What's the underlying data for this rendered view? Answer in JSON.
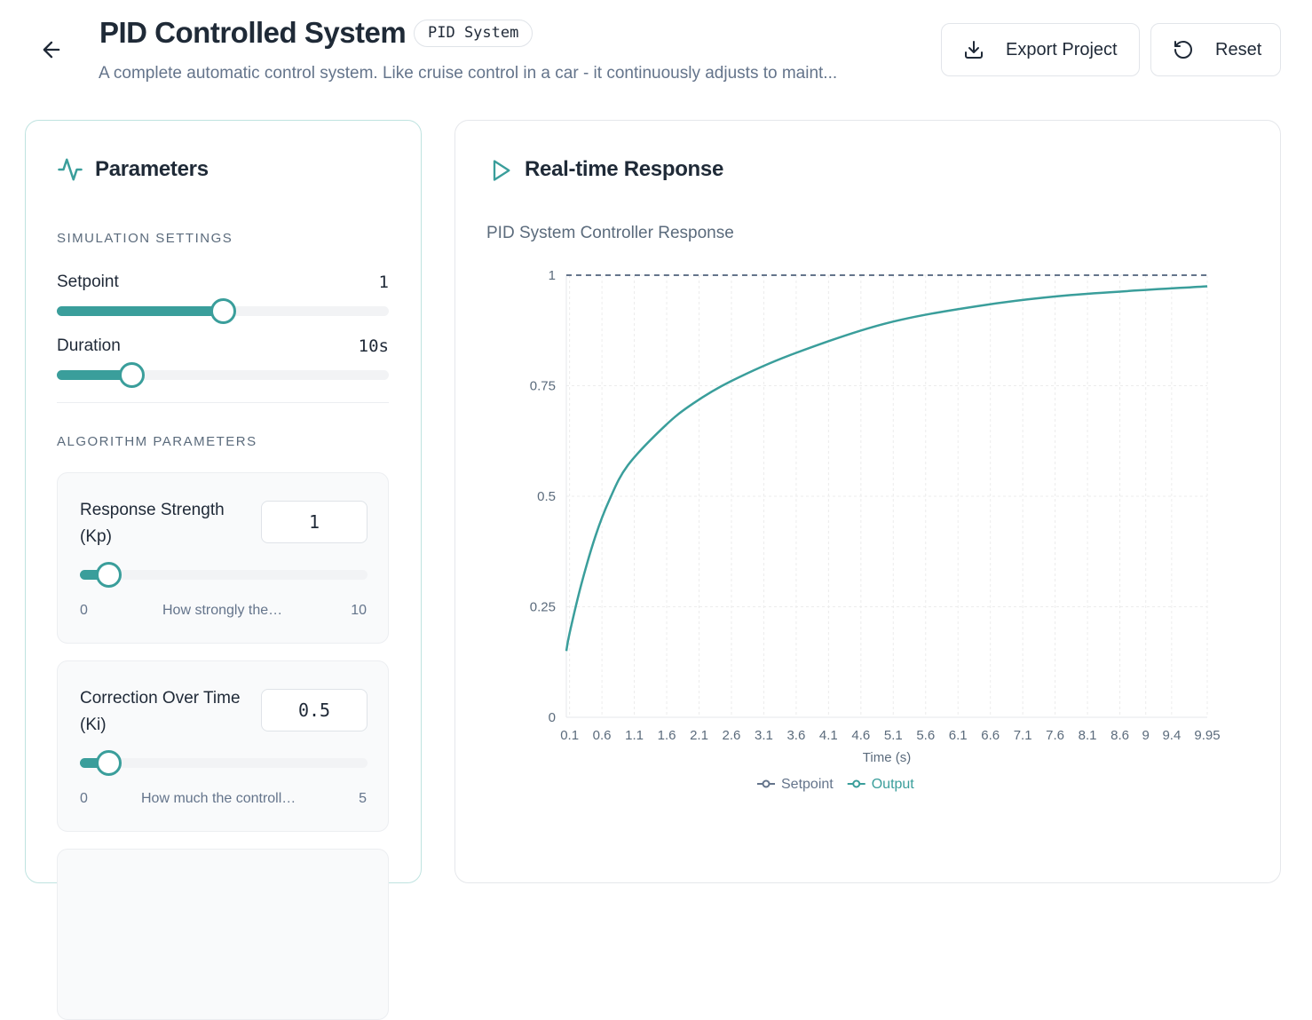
{
  "header": {
    "title": "PID Controlled System",
    "badge": "PID System",
    "subtitle": "A complete automatic control system. Like cruise control in a car - it continuously adjusts to maint...",
    "export_label": "Export Project",
    "reset_label": "Reset"
  },
  "parameters": {
    "title": "Parameters",
    "simulation_section": "SIMULATION SETTINGS",
    "setpoint": {
      "label": "Setpoint",
      "value": "1",
      "fraction": 0.5
    },
    "duration": {
      "label": "Duration",
      "value": "10s",
      "fraction": 0.225
    },
    "algorithm_section": "ALGORITHM PARAMETERS",
    "items": [
      {
        "label_line1": "Response Strength",
        "label_line2": "(Kp)",
        "value": "1",
        "min": "0",
        "max": "10",
        "hint": "How strongly the…",
        "fraction": 0.1
      },
      {
        "label_line1": "Correction Over Time",
        "label_line2": "(Ki)",
        "value": "0.5",
        "min": "0",
        "max": "5",
        "hint": "How much the controll…",
        "fraction": 0.1
      }
    ]
  },
  "response": {
    "title": "Real-time Response"
  },
  "colors": {
    "accent": "#3a9e9b",
    "setpoint": "#64748b"
  },
  "chart_data": {
    "type": "line",
    "title": "PID System Controller Response",
    "xlabel": "Time (s)",
    "ylabel": "",
    "xlim": [
      0.05,
      9.95
    ],
    "ylim": [
      0,
      1
    ],
    "x_ticks": [
      "0.1",
      "0.6",
      "1.1",
      "1.6",
      "2.1",
      "2.6",
      "3.1",
      "3.6",
      "4.1",
      "4.6",
      "5.1",
      "5.6",
      "6.1",
      "6.6",
      "7.1",
      "7.6",
      "8.1",
      "8.6",
      "9",
      "9.4",
      "9.95"
    ],
    "y_ticks": [
      "0",
      "0.25",
      "0.5",
      "0.75",
      "1"
    ],
    "grid": true,
    "legend": "bottom",
    "series": [
      {
        "name": "Setpoint",
        "style": "dashed",
        "color": "#64748b",
        "x": [
          0.05,
          9.95
        ],
        "y": [
          1,
          1
        ]
      },
      {
        "name": "Output",
        "color": "#3a9e9b",
        "x": [
          0.05,
          0.1,
          0.28,
          0.5,
          0.71,
          1.0,
          1.58,
          2.01,
          2.59,
          3.52,
          4.96,
          6.4,
          7.84,
          9.95
        ],
        "y": [
          0.15,
          0.19,
          0.3,
          0.41,
          0.49,
          0.57,
          0.66,
          0.71,
          0.76,
          0.82,
          0.89,
          0.93,
          0.955,
          0.975
        ]
      }
    ]
  }
}
